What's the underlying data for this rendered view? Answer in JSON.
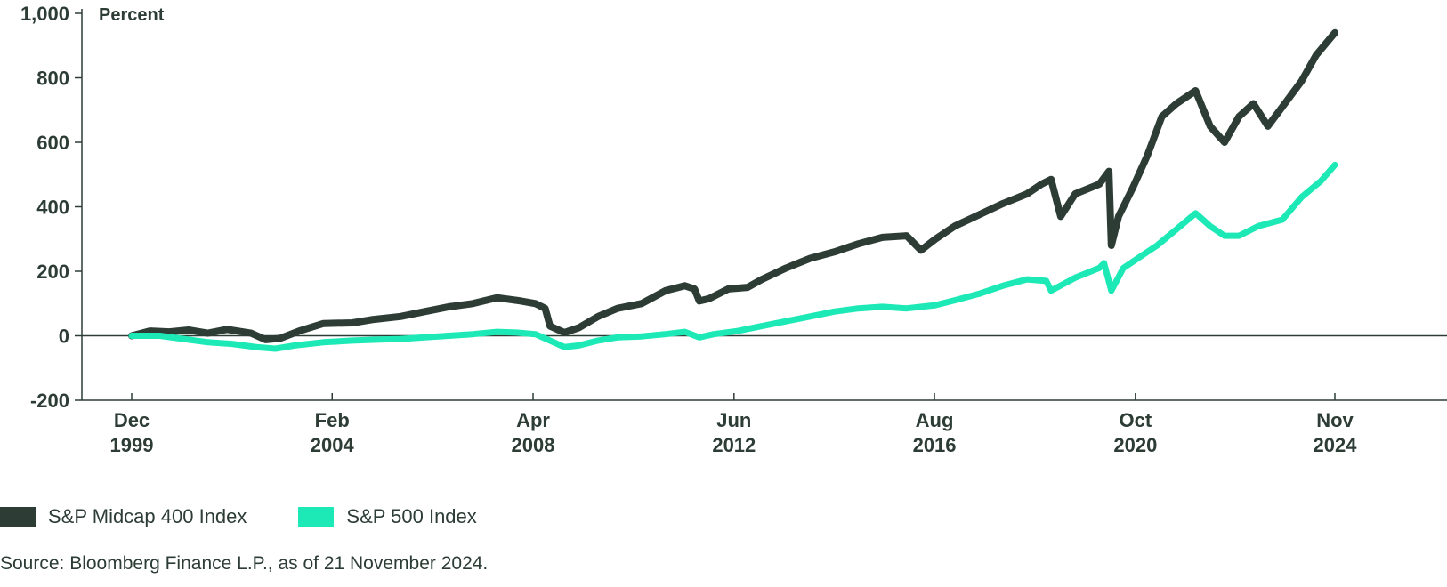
{
  "chart_data": {
    "type": "line",
    "unit_label": "Percent",
    "ylim": [
      -200,
      1000
    ],
    "y_ticks": [
      -200,
      0,
      200,
      400,
      600,
      800,
      1000
    ],
    "y_tick_labels": [
      "-200",
      "0",
      "200",
      "400",
      "600",
      "800",
      "1,000"
    ],
    "x_ticks": [
      {
        "month": "Dec",
        "year": "1999",
        "t": 1999.92
      },
      {
        "month": "Feb",
        "year": "2004",
        "t": 2004.08
      },
      {
        "month": "Apr",
        "year": "2008",
        "t": 2008.25
      },
      {
        "month": "Jun",
        "year": "2012",
        "t": 2012.42
      },
      {
        "month": "Aug",
        "year": "2016",
        "t": 2016.58
      },
      {
        "month": "Oct",
        "year": "2020",
        "t": 2020.75
      },
      {
        "month": "Nov",
        "year": "2024",
        "t": 2024.89
      }
    ],
    "xlim": [
      1998.9,
      2026.2
    ],
    "grid": false,
    "legend_position": "bottom-left",
    "series": [
      {
        "name": "S&P Midcap 400 Index",
        "color": "#2d3d36",
        "points": [
          [
            1999.92,
            0
          ],
          [
            2000.3,
            15
          ],
          [
            2000.7,
            12
          ],
          [
            2001.1,
            18
          ],
          [
            2001.5,
            8
          ],
          [
            2001.9,
            20
          ],
          [
            2002.4,
            8
          ],
          [
            2002.7,
            -12
          ],
          [
            2003.0,
            -8
          ],
          [
            2003.4,
            15
          ],
          [
            2003.9,
            38
          ],
          [
            2004.5,
            40
          ],
          [
            2004.9,
            50
          ],
          [
            2005.5,
            60
          ],
          [
            2006.0,
            75
          ],
          [
            2006.5,
            90
          ],
          [
            2007.0,
            100
          ],
          [
            2007.5,
            118
          ],
          [
            2008.0,
            108
          ],
          [
            2008.3,
            100
          ],
          [
            2008.5,
            85
          ],
          [
            2008.6,
            30
          ],
          [
            2008.9,
            10
          ],
          [
            2009.2,
            25
          ],
          [
            2009.6,
            60
          ],
          [
            2010.0,
            85
          ],
          [
            2010.5,
            100
          ],
          [
            2011.0,
            140
          ],
          [
            2011.4,
            155
          ],
          [
            2011.6,
            145
          ],
          [
            2011.7,
            108
          ],
          [
            2011.9,
            115
          ],
          [
            2012.3,
            145
          ],
          [
            2012.7,
            150
          ],
          [
            2013.0,
            175
          ],
          [
            2013.5,
            210
          ],
          [
            2014.0,
            240
          ],
          [
            2014.5,
            260
          ],
          [
            2015.0,
            285
          ],
          [
            2015.5,
            305
          ],
          [
            2016.0,
            310
          ],
          [
            2016.3,
            265
          ],
          [
            2016.6,
            300
          ],
          [
            2017.0,
            340
          ],
          [
            2017.5,
            375
          ],
          [
            2018.0,
            410
          ],
          [
            2018.5,
            440
          ],
          [
            2018.8,
            470
          ],
          [
            2019.0,
            485
          ],
          [
            2019.2,
            370
          ],
          [
            2019.5,
            440
          ],
          [
            2020.0,
            470
          ],
          [
            2020.2,
            510
          ],
          [
            2020.25,
            280
          ],
          [
            2020.4,
            370
          ],
          [
            2020.7,
            460
          ],
          [
            2021.0,
            560
          ],
          [
            2021.3,
            680
          ],
          [
            2021.6,
            720
          ],
          [
            2022.0,
            760
          ],
          [
            2022.3,
            650
          ],
          [
            2022.6,
            600
          ],
          [
            2022.9,
            680
          ],
          [
            2023.2,
            720
          ],
          [
            2023.5,
            650
          ],
          [
            2023.9,
            730
          ],
          [
            2024.2,
            790
          ],
          [
            2024.5,
            870
          ],
          [
            2024.89,
            940
          ]
        ]
      },
      {
        "name": "S&P 500 Index",
        "color": "#1de9b6",
        "points": [
          [
            1999.92,
            0
          ],
          [
            2000.5,
            0
          ],
          [
            2001.0,
            -10
          ],
          [
            2001.5,
            -20
          ],
          [
            2002.0,
            -25
          ],
          [
            2002.5,
            -35
          ],
          [
            2002.9,
            -40
          ],
          [
            2003.3,
            -30
          ],
          [
            2003.9,
            -20
          ],
          [
            2004.5,
            -15
          ],
          [
            2005.0,
            -12
          ],
          [
            2005.5,
            -10
          ],
          [
            2006.0,
            -5
          ],
          [
            2006.5,
            0
          ],
          [
            2007.0,
            5
          ],
          [
            2007.5,
            12
          ],
          [
            2007.9,
            10
          ],
          [
            2008.3,
            5
          ],
          [
            2008.6,
            -15
          ],
          [
            2008.9,
            -35
          ],
          [
            2009.2,
            -30
          ],
          [
            2009.6,
            -15
          ],
          [
            2010.0,
            -5
          ],
          [
            2010.5,
            -2
          ],
          [
            2011.0,
            5
          ],
          [
            2011.4,
            12
          ],
          [
            2011.7,
            -5
          ],
          [
            2012.0,
            5
          ],
          [
            2012.5,
            15
          ],
          [
            2013.0,
            30
          ],
          [
            2013.5,
            45
          ],
          [
            2014.0,
            60
          ],
          [
            2014.5,
            75
          ],
          [
            2015.0,
            85
          ],
          [
            2015.5,
            90
          ],
          [
            2016.0,
            85
          ],
          [
            2016.6,
            95
          ],
          [
            2017.0,
            110
          ],
          [
            2017.5,
            130
          ],
          [
            2018.0,
            155
          ],
          [
            2018.5,
            175
          ],
          [
            2018.9,
            170
          ],
          [
            2019.0,
            140
          ],
          [
            2019.5,
            180
          ],
          [
            2020.0,
            210
          ],
          [
            2020.1,
            225
          ],
          [
            2020.25,
            140
          ],
          [
            2020.5,
            210
          ],
          [
            2020.8,
            240
          ],
          [
            2021.2,
            280
          ],
          [
            2021.6,
            330
          ],
          [
            2022.0,
            380
          ],
          [
            2022.3,
            340
          ],
          [
            2022.6,
            310
          ],
          [
            2022.9,
            310
          ],
          [
            2023.3,
            340
          ],
          [
            2023.8,
            360
          ],
          [
            2024.2,
            430
          ],
          [
            2024.6,
            480
          ],
          [
            2024.89,
            530
          ]
        ]
      }
    ]
  },
  "legend": [
    {
      "label": "S&P Midcap 400 Index",
      "color": "#2d3d36"
    },
    {
      "label": "S&P 500 Index",
      "color": "#1de9b6"
    }
  ],
  "source": "Source: Bloomberg Finance L.P., as of 21 November 2024."
}
